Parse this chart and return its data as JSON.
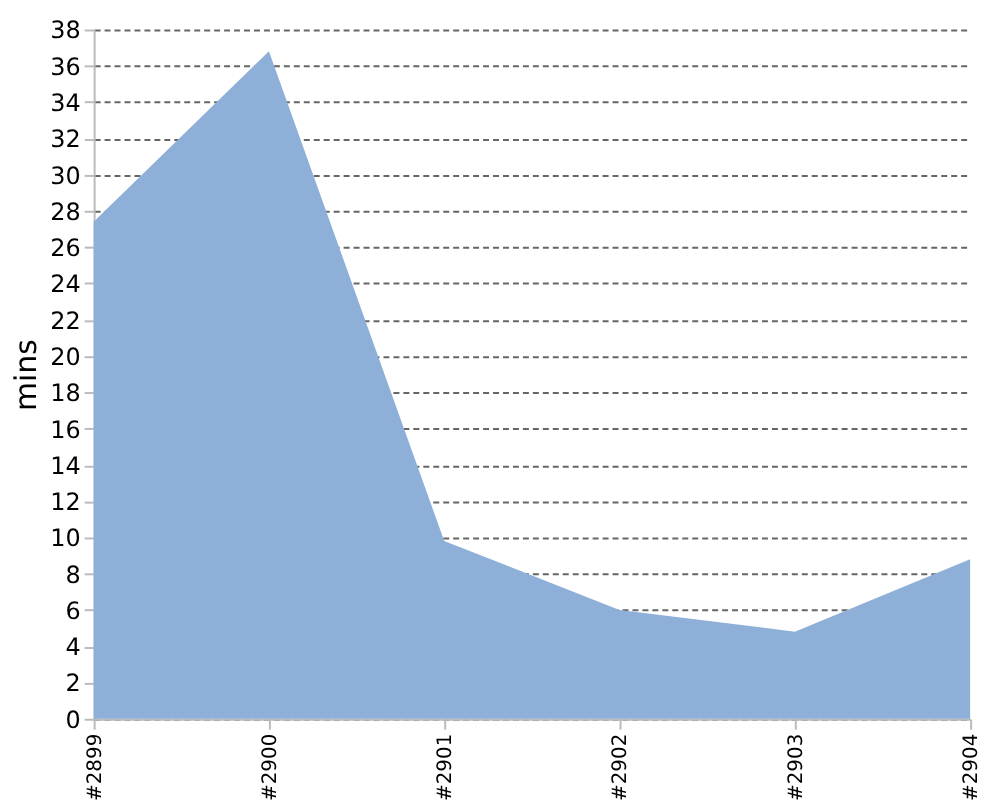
{
  "chart_data": {
    "type": "area",
    "ylabel": "mins",
    "categories": [
      "#2899",
      "#2900",
      "#2901",
      "#2902",
      "#2903",
      "#2904"
    ],
    "values": [
      27.4,
      36.8,
      9.8,
      6.0,
      4.8,
      8.8
    ],
    "color": "#8eb0d8",
    "ylim": [
      0,
      38
    ],
    "yticks": [
      0,
      2,
      4,
      6,
      8,
      10,
      12,
      14,
      16,
      18,
      20,
      22,
      24,
      26,
      28,
      30,
      32,
      34,
      36,
      38
    ],
    "grid": "y"
  }
}
